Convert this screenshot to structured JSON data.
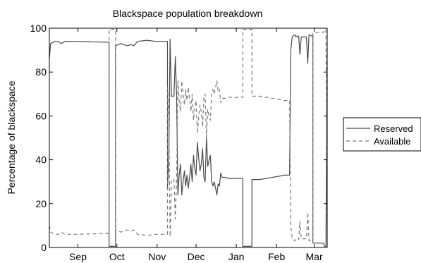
{
  "chart_data": {
    "type": "line",
    "title": "Blackspace population breakdown",
    "xlabel": "",
    "ylabel": "Percentage of blackspace",
    "ylim": [
      0,
      100
    ],
    "yticks": [
      0,
      20,
      40,
      60,
      80,
      100
    ],
    "xlim": [
      "2011-08-25",
      "2012-03-26"
    ],
    "xticks": [
      {
        "date": "2011-09-16",
        "label": "Sep"
      },
      {
        "date": "2011-10-16",
        "label": "Oct"
      },
      {
        "date": "2011-11-16",
        "label": "Nov"
      },
      {
        "date": "2011-12-16",
        "label": "Dec"
      },
      {
        "date": "2012-01-16",
        "label": "Jan"
      },
      {
        "date": "2012-02-16",
        "label": "Feb"
      },
      {
        "date": "2012-03-16",
        "label": "Mar"
      }
    ],
    "grid": false,
    "legend_position": "outside-right",
    "series": [
      {
        "name": "Reserved",
        "color": "#4a4a4a",
        "dash": "solid",
        "points": [
          [
            "2011-08-25",
            86
          ],
          [
            "2011-08-26",
            93
          ],
          [
            "2011-08-29",
            94
          ],
          [
            "2011-09-01",
            94
          ],
          [
            "2011-09-03",
            93
          ],
          [
            "2011-09-06",
            94
          ],
          [
            "2011-09-16",
            94
          ],
          [
            "2011-09-26",
            93.8
          ],
          [
            "2011-10-10",
            93.6
          ],
          [
            "2011-10-10",
            0.5
          ],
          [
            "2011-10-15",
            0.5
          ],
          [
            "2011-10-15",
            92
          ],
          [
            "2011-10-19",
            93
          ],
          [
            "2011-10-24",
            92
          ],
          [
            "2011-10-27",
            92.5
          ],
          [
            "2011-10-29",
            92
          ],
          [
            "2011-11-01",
            94
          ],
          [
            "2011-11-08",
            94.5
          ],
          [
            "2011-11-15",
            94
          ],
          [
            "2011-11-22",
            94
          ],
          [
            "2011-11-24",
            94
          ],
          [
            "2011-11-24",
            27
          ],
          [
            "2011-11-25",
            40
          ],
          [
            "2011-11-26",
            95
          ],
          [
            "2011-11-27",
            69
          ],
          [
            "2011-11-29",
            69
          ],
          [
            "2011-11-30",
            87
          ],
          [
            "2011-12-01",
            70
          ],
          [
            "2011-12-02",
            24
          ],
          [
            "2011-12-03",
            33
          ],
          [
            "2011-12-04",
            38
          ],
          [
            "2011-12-05",
            24
          ],
          [
            "2011-12-06",
            30
          ],
          [
            "2011-12-07",
            35
          ],
          [
            "2011-12-08",
            28
          ],
          [
            "2011-12-09",
            33
          ],
          [
            "2011-12-10",
            27
          ],
          [
            "2011-12-11",
            32
          ],
          [
            "2011-12-12",
            38
          ],
          [
            "2011-12-13",
            30
          ],
          [
            "2011-12-14",
            42
          ],
          [
            "2011-12-15",
            36
          ],
          [
            "2011-12-16",
            33
          ],
          [
            "2011-12-17",
            48
          ],
          [
            "2011-12-18",
            41
          ],
          [
            "2011-12-19",
            35
          ],
          [
            "2011-12-20",
            38
          ],
          [
            "2011-12-21",
            45
          ],
          [
            "2011-12-22",
            32
          ],
          [
            "2011-12-23",
            30
          ],
          [
            "2011-12-24",
            50
          ],
          [
            "2011-12-25",
            37
          ],
          [
            "2011-12-26",
            40
          ],
          [
            "2011-12-27",
            42
          ],
          [
            "2011-12-28",
            30
          ],
          [
            "2011-12-29",
            28
          ],
          [
            "2011-12-30",
            30
          ],
          [
            "2011-12-31",
            27
          ],
          [
            "2012-01-01",
            24
          ],
          [
            "2012-01-02",
            29
          ],
          [
            "2012-01-03",
            28
          ],
          [
            "2012-01-04",
            34
          ],
          [
            "2012-01-05",
            32
          ],
          [
            "2012-01-07",
            32
          ],
          [
            "2012-01-10",
            31.5
          ],
          [
            "2012-01-15",
            31.5
          ],
          [
            "2012-01-21",
            31.5
          ],
          [
            "2012-01-21",
            0.5
          ],
          [
            "2012-01-28",
            0.5
          ],
          [
            "2012-01-28",
            31
          ],
          [
            "2012-02-03",
            31
          ],
          [
            "2012-02-08",
            31.5
          ],
          [
            "2012-02-13",
            32
          ],
          [
            "2012-02-18",
            32.5
          ],
          [
            "2012-02-22",
            33
          ],
          [
            "2012-02-26",
            33
          ],
          [
            "2012-02-27",
            90
          ],
          [
            "2012-02-28",
            96
          ],
          [
            "2012-03-01",
            97
          ],
          [
            "2012-03-02",
            96
          ],
          [
            "2012-03-04",
            96.5
          ],
          [
            "2012-03-05",
            88
          ],
          [
            "2012-03-06",
            96
          ],
          [
            "2012-03-08",
            96
          ],
          [
            "2012-03-10",
            96
          ],
          [
            "2012-03-11",
            84
          ],
          [
            "2012-03-12",
            97
          ],
          [
            "2012-03-14",
            96.5
          ],
          [
            "2012-03-15",
            96.5
          ],
          [
            "2012-03-15",
            2
          ],
          [
            "2012-03-23",
            2
          ],
          [
            "2012-03-24",
            0.5
          ],
          [
            "2012-03-25",
            0.5
          ],
          [
            "2012-03-26",
            93
          ]
        ]
      },
      {
        "name": "Available",
        "color": "#7a7a7a",
        "dash": "dashed",
        "points": [
          [
            "2011-08-25",
            10
          ],
          [
            "2011-08-26",
            7
          ],
          [
            "2011-08-29",
            6
          ],
          [
            "2011-09-01",
            6
          ],
          [
            "2011-09-03",
            7
          ],
          [
            "2011-09-06",
            6
          ],
          [
            "2011-09-16",
            6
          ],
          [
            "2011-09-26",
            6.2
          ],
          [
            "2011-10-10",
            6.4
          ],
          [
            "2011-10-10",
            99.5
          ],
          [
            "2011-10-15",
            99.5
          ],
          [
            "2011-10-15",
            8
          ],
          [
            "2011-10-19",
            7
          ],
          [
            "2011-10-24",
            8
          ],
          [
            "2011-10-27",
            7.5
          ],
          [
            "2011-10-29",
            8
          ],
          [
            "2011-11-01",
            6
          ],
          [
            "2011-11-08",
            5.5
          ],
          [
            "2011-11-15",
            6
          ],
          [
            "2011-11-22",
            6
          ],
          [
            "2011-11-24",
            6
          ],
          [
            "2011-11-24",
            73
          ],
          [
            "2011-11-25",
            60
          ],
          [
            "2011-11-26",
            5
          ],
          [
            "2011-11-27",
            31
          ],
          [
            "2011-11-29",
            31
          ],
          [
            "2011-11-30",
            13
          ],
          [
            "2011-12-01",
            30
          ],
          [
            "2011-12-02",
            76
          ],
          [
            "2011-12-03",
            67
          ],
          [
            "2011-12-04",
            62
          ],
          [
            "2011-12-05",
            76
          ],
          [
            "2011-12-06",
            70
          ],
          [
            "2011-12-07",
            65
          ],
          [
            "2011-12-08",
            72
          ],
          [
            "2011-12-09",
            67
          ],
          [
            "2011-12-10",
            73
          ],
          [
            "2011-12-11",
            68
          ],
          [
            "2011-12-12",
            62
          ],
          [
            "2011-12-13",
            70
          ],
          [
            "2011-12-14",
            58
          ],
          [
            "2011-12-15",
            64
          ],
          [
            "2011-12-16",
            67
          ],
          [
            "2011-12-17",
            52
          ],
          [
            "2011-12-18",
            59
          ],
          [
            "2011-12-19",
            65
          ],
          [
            "2011-12-20",
            62
          ],
          [
            "2011-12-21",
            55
          ],
          [
            "2011-12-22",
            68
          ],
          [
            "2011-12-23",
            70
          ],
          [
            "2011-12-24",
            50
          ],
          [
            "2011-12-25",
            63
          ],
          [
            "2011-12-26",
            60
          ],
          [
            "2011-12-27",
            58
          ],
          [
            "2011-12-28",
            70
          ],
          [
            "2011-12-29",
            72
          ],
          [
            "2011-12-30",
            70
          ],
          [
            "2011-12-31",
            73
          ],
          [
            "2012-01-01",
            76
          ],
          [
            "2012-01-02",
            71
          ],
          [
            "2012-01-03",
            72
          ],
          [
            "2012-01-04",
            66
          ],
          [
            "2012-01-05",
            68
          ],
          [
            "2012-01-07",
            68
          ],
          [
            "2012-01-10",
            68.5
          ],
          [
            "2012-01-15",
            68.5
          ],
          [
            "2012-01-21",
            68.5
          ],
          [
            "2012-01-21",
            99.5
          ],
          [
            "2012-01-28",
            99.5
          ],
          [
            "2012-01-28",
            69
          ],
          [
            "2012-02-03",
            69
          ],
          [
            "2012-02-08",
            68.5
          ],
          [
            "2012-02-13",
            68
          ],
          [
            "2012-02-18",
            67.5
          ],
          [
            "2012-02-22",
            67
          ],
          [
            "2012-02-26",
            67
          ],
          [
            "2012-02-27",
            10
          ],
          [
            "2012-02-28",
            4
          ],
          [
            "2012-03-01",
            3
          ],
          [
            "2012-03-02",
            4
          ],
          [
            "2012-03-04",
            3.5
          ],
          [
            "2012-03-05",
            12
          ],
          [
            "2012-03-06",
            4
          ],
          [
            "2012-03-08",
            4
          ],
          [
            "2012-03-10",
            4
          ],
          [
            "2012-03-11",
            16
          ],
          [
            "2012-03-12",
            3
          ],
          [
            "2012-03-14",
            3.5
          ],
          [
            "2012-03-15",
            3.5
          ],
          [
            "2012-03-15",
            98
          ],
          [
            "2012-03-23",
            98
          ],
          [
            "2012-03-24",
            99.5
          ],
          [
            "2012-03-25",
            99.5
          ],
          [
            "2012-03-26",
            7
          ]
        ]
      }
    ]
  }
}
